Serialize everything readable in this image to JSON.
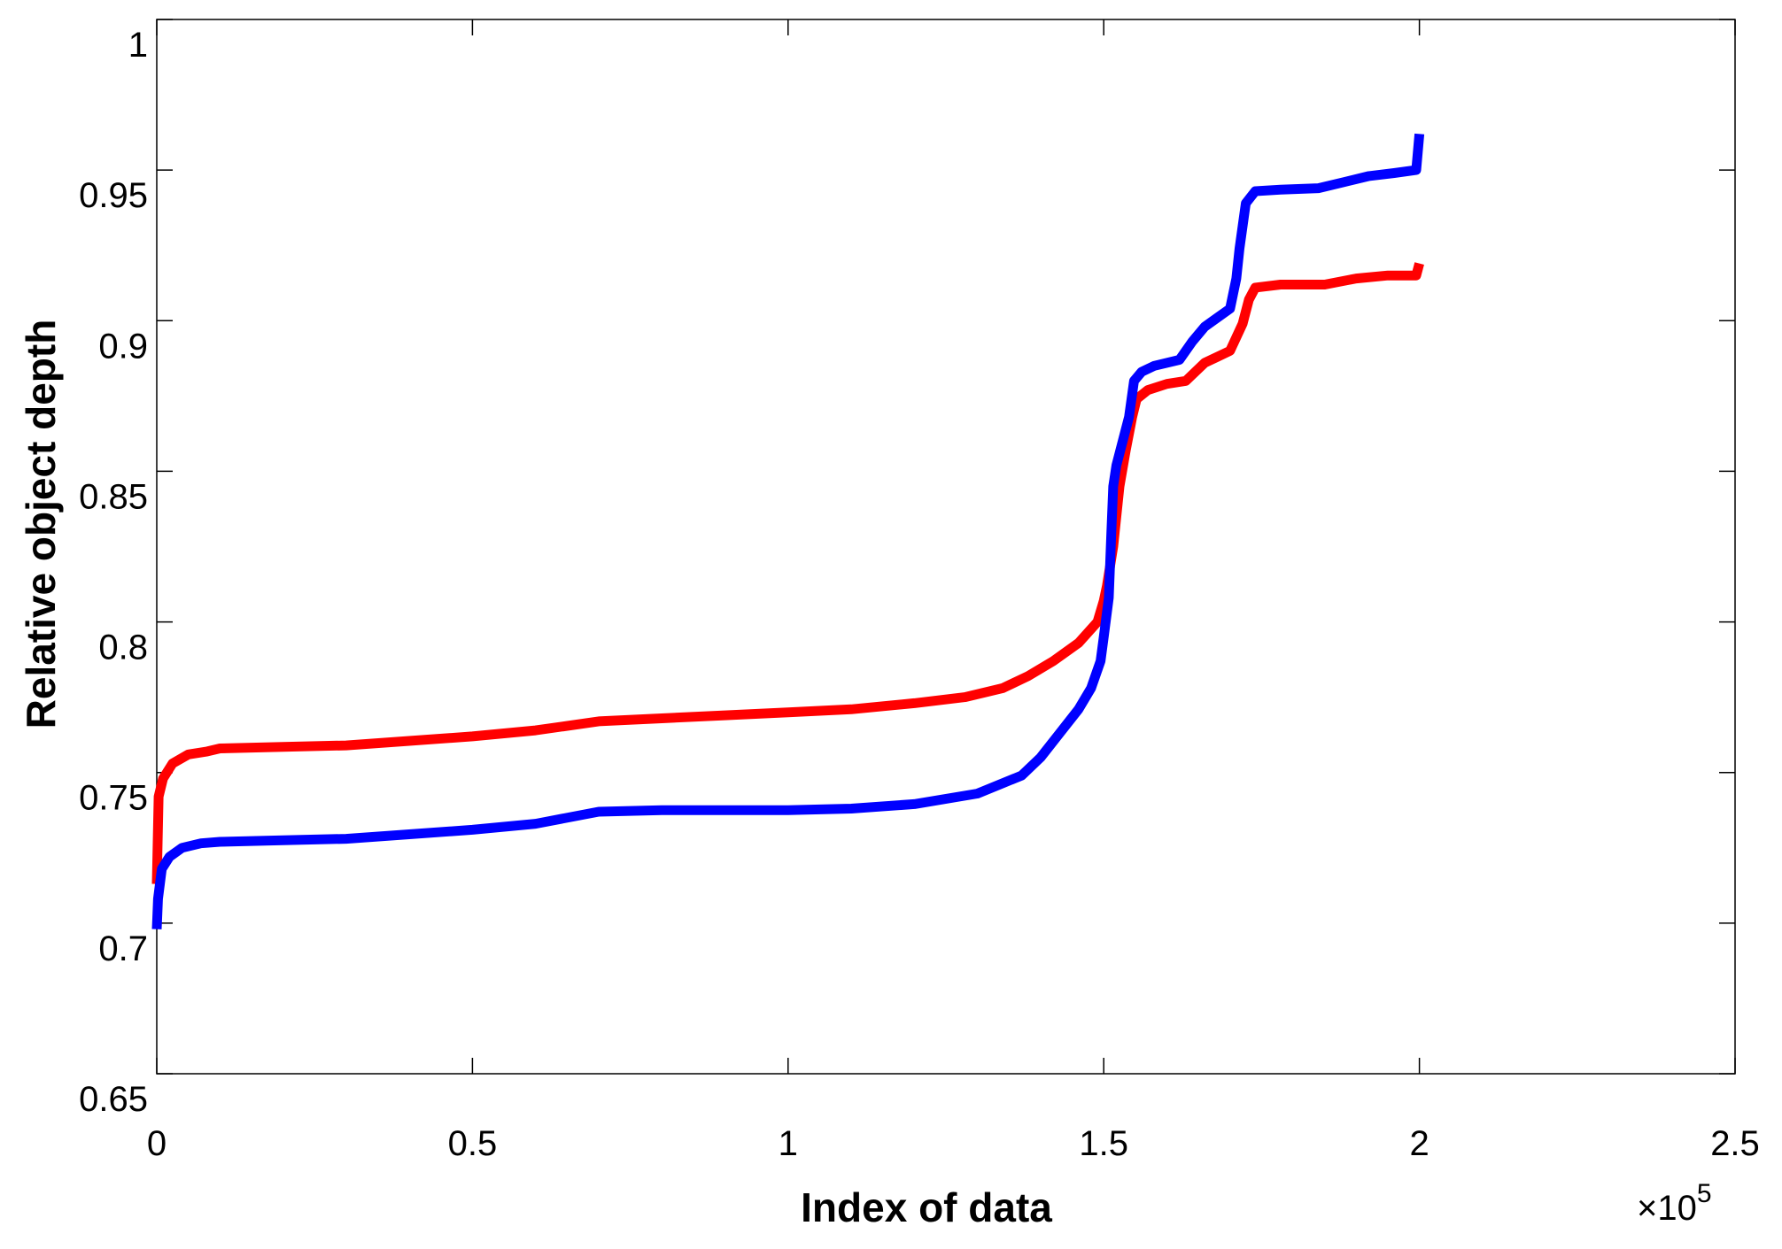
{
  "chart_data": {
    "type": "line",
    "title": "",
    "xlabel": "Index of data",
    "ylabel": "Relative object depth",
    "x_exponent_label": "×10",
    "x_exponent_power": "5",
    "xlim": [
      0,
      250000
    ],
    "ylim": [
      0.65,
      1.0
    ],
    "x_ticks": [
      0,
      50000,
      100000,
      150000,
      200000,
      250000
    ],
    "x_tick_labels": [
      "0",
      "0.5",
      "1",
      "1.5",
      "2",
      "2.5"
    ],
    "y_ticks": [
      0.65,
      0.7,
      0.75,
      0.8,
      0.85,
      0.9,
      0.95,
      1.0
    ],
    "y_tick_labels": [
      "0.65",
      "0.7",
      "0.75",
      "0.8",
      "0.85",
      "0.9",
      "0.95",
      "1"
    ],
    "grid": false,
    "series": [
      {
        "color": "#ff0000",
        "points": [
          [
            0,
            0.713
          ],
          [
            300,
            0.742
          ],
          [
            1000,
            0.748
          ],
          [
            2500,
            0.753
          ],
          [
            5000,
            0.756
          ],
          [
            8000,
            0.757
          ],
          [
            10000,
            0.758
          ],
          [
            20000,
            0.7585
          ],
          [
            30000,
            0.759
          ],
          [
            40000,
            0.7605
          ],
          [
            50000,
            0.762
          ],
          [
            60000,
            0.764
          ],
          [
            70000,
            0.767
          ],
          [
            80000,
            0.768
          ],
          [
            90000,
            0.769
          ],
          [
            100000,
            0.77
          ],
          [
            110000,
            0.771
          ],
          [
            120000,
            0.773
          ],
          [
            128000,
            0.775
          ],
          [
            134000,
            0.778
          ],
          [
            138000,
            0.782
          ],
          [
            142000,
            0.787
          ],
          [
            146000,
            0.793
          ],
          [
            149000,
            0.8
          ],
          [
            150000,
            0.807
          ],
          [
            150500,
            0.812
          ],
          [
            151500,
            0.825
          ],
          [
            152500,
            0.845
          ],
          [
            153500,
            0.857
          ],
          [
            154500,
            0.868
          ],
          [
            155200,
            0.874
          ],
          [
            157000,
            0.877
          ],
          [
            160000,
            0.879
          ],
          [
            163000,
            0.88
          ],
          [
            166000,
            0.886
          ],
          [
            168000,
            0.888
          ],
          [
            170000,
            0.89
          ],
          [
            172000,
            0.899
          ],
          [
            173000,
            0.907
          ],
          [
            174000,
            0.911
          ],
          [
            178000,
            0.912
          ],
          [
            185000,
            0.912
          ],
          [
            190000,
            0.914
          ],
          [
            195000,
            0.915
          ],
          [
            199500,
            0.915
          ],
          [
            200000,
            0.919
          ]
        ]
      },
      {
        "color": "#0000ff",
        "points": [
          [
            0,
            0.698
          ],
          [
            200,
            0.708
          ],
          [
            800,
            0.718
          ],
          [
            2000,
            0.722
          ],
          [
            4000,
            0.725
          ],
          [
            7000,
            0.7265
          ],
          [
            10000,
            0.727
          ],
          [
            20000,
            0.7275
          ],
          [
            30000,
            0.728
          ],
          [
            40000,
            0.7295
          ],
          [
            50000,
            0.731
          ],
          [
            60000,
            0.733
          ],
          [
            70000,
            0.737
          ],
          [
            80000,
            0.7375
          ],
          [
            90000,
            0.7375
          ],
          [
            100000,
            0.7375
          ],
          [
            110000,
            0.738
          ],
          [
            120000,
            0.7395
          ],
          [
            130000,
            0.743
          ],
          [
            137000,
            0.749
          ],
          [
            140000,
            0.755
          ],
          [
            143000,
            0.763
          ],
          [
            146000,
            0.771
          ],
          [
            148000,
            0.778
          ],
          [
            149500,
            0.787
          ],
          [
            150000,
            0.795
          ],
          [
            150800,
            0.808
          ],
          [
            151200,
            0.83
          ],
          [
            151500,
            0.845
          ],
          [
            152000,
            0.852
          ],
          [
            153000,
            0.86
          ],
          [
            154000,
            0.868
          ],
          [
            154800,
            0.88
          ],
          [
            156000,
            0.883
          ],
          [
            158000,
            0.885
          ],
          [
            162000,
            0.887
          ],
          [
            164000,
            0.893
          ],
          [
            166000,
            0.898
          ],
          [
            168000,
            0.901
          ],
          [
            170000,
            0.904
          ],
          [
            171000,
            0.914
          ],
          [
            171500,
            0.924
          ],
          [
            172500,
            0.939
          ],
          [
            174000,
            0.943
          ],
          [
            178000,
            0.9435
          ],
          [
            184000,
            0.944
          ],
          [
            188000,
            0.946
          ],
          [
            192000,
            0.948
          ],
          [
            196000,
            0.949
          ],
          [
            199500,
            0.95
          ],
          [
            200000,
            0.962
          ]
        ]
      }
    ]
  }
}
